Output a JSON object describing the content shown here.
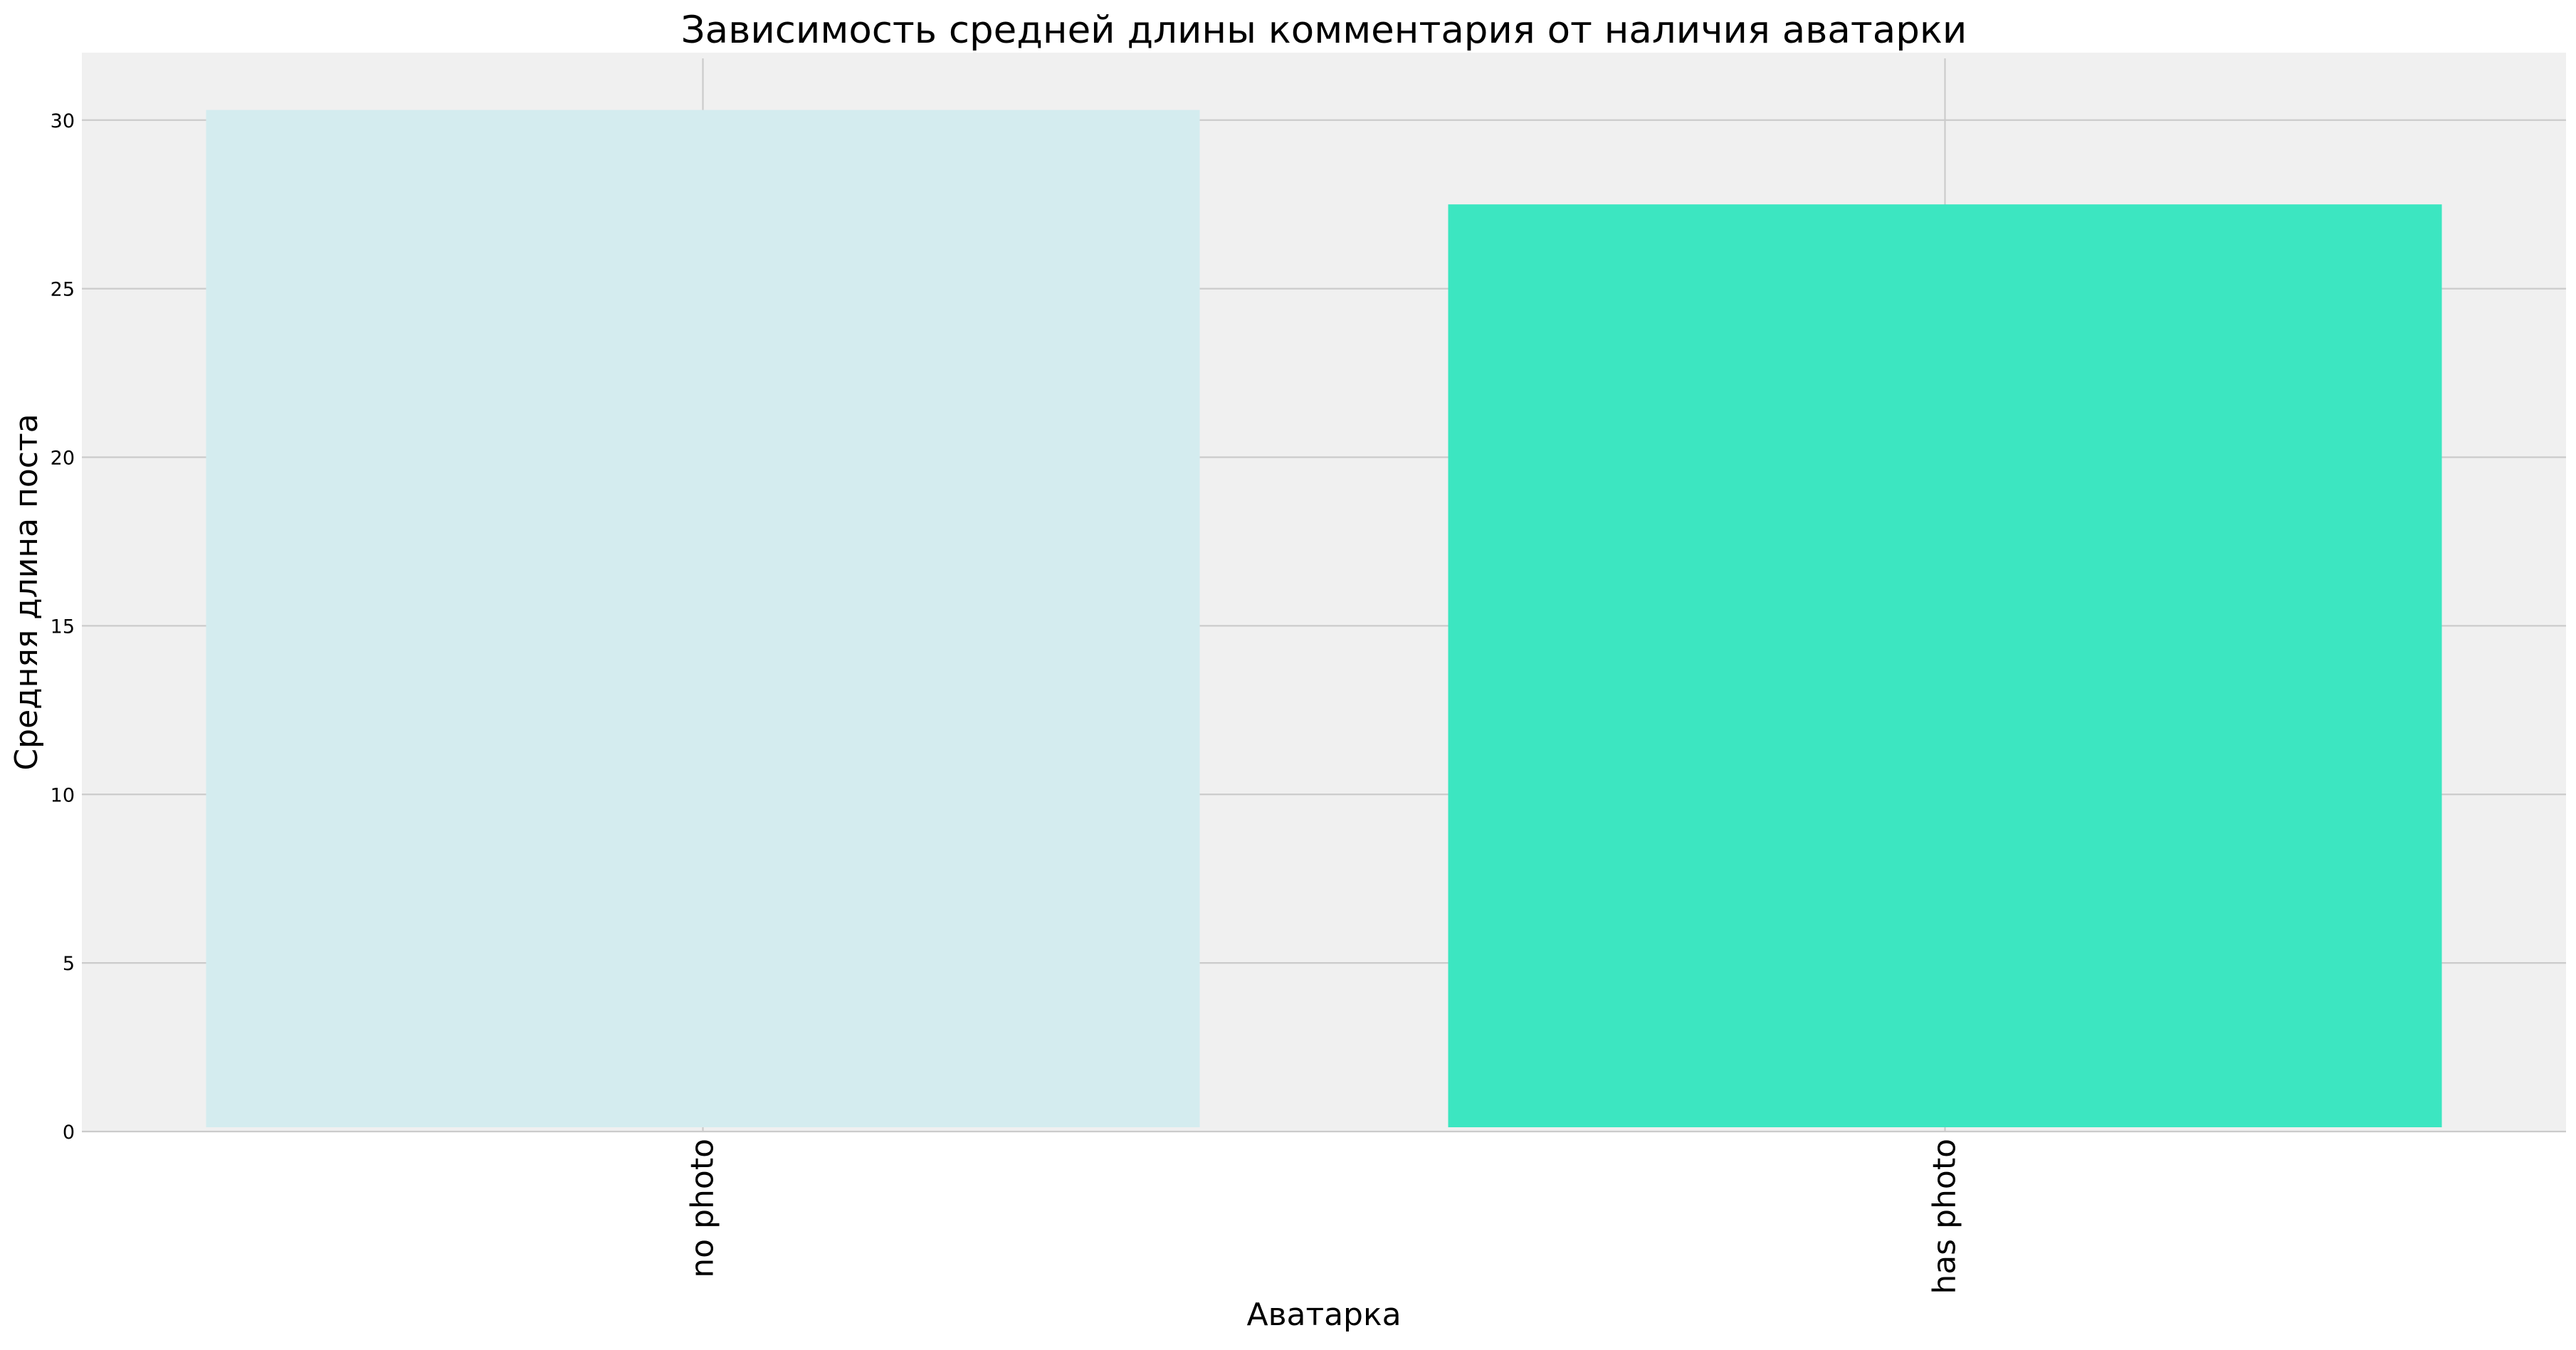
{
  "chart_data": {
    "type": "bar",
    "title": "Зависимость средней длины комментария от наличия аватарки",
    "xlabel": "Аватарка",
    "ylabel": "Средняя длина поста",
    "categories": [
      "no photo",
      "has photo"
    ],
    "values": [
      30.3,
      27.5
    ],
    "bar_colors": [
      "#d4ecef",
      "#3ce6c1"
    ],
    "ylim": [
      0,
      32
    ],
    "yticks": [
      0,
      5,
      10,
      15,
      20,
      25,
      30
    ],
    "ytick_labels": [
      "0",
      "5",
      "10",
      "15",
      "20",
      "25",
      "30"
    ],
    "grid": true,
    "legend": "none",
    "plot_background": "#f0f0f0",
    "grid_color": "#cbcbcb"
  }
}
